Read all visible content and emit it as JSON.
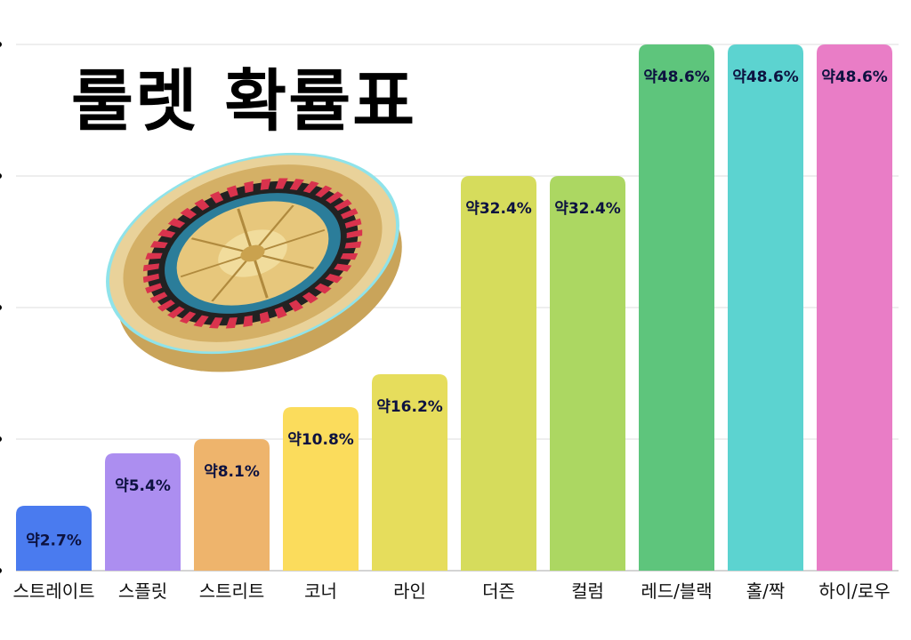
{
  "chart_data": {
    "type": "bar",
    "title": "룰렛 확률표",
    "categories": [
      "스트레이트",
      "스플릿",
      "스트리트",
      "코너",
      "라인",
      "더즌",
      "컬럼",
      "레드/블랙",
      "홀/짝",
      "하이/로우"
    ],
    "values": [
      2.7,
      5.4,
      8.1,
      10.8,
      16.2,
      32.4,
      32.4,
      48.6,
      48.6,
      48.6
    ],
    "data_labels": [
      "약2.7%",
      "약5.4%",
      "약8.1%",
      "약10.8%",
      "약16.2%",
      "약32.4%",
      "약32.4%",
      "약48.6%",
      "약48.6%",
      "약48.6%"
    ],
    "colors": [
      "#4a7bef",
      "#ac8ef0",
      "#eeb46c",
      "#fbdc5c",
      "#e6dd5c",
      "#d6dc5c",
      "#acd762",
      "#5ec57c",
      "#5cd3d0",
      "#e97dc6"
    ],
    "label_color": "#0d1240",
    "grid": true,
    "xlabel": "",
    "ylabel": ""
  },
  "decoration": {
    "image": "roulette-wheel"
  }
}
